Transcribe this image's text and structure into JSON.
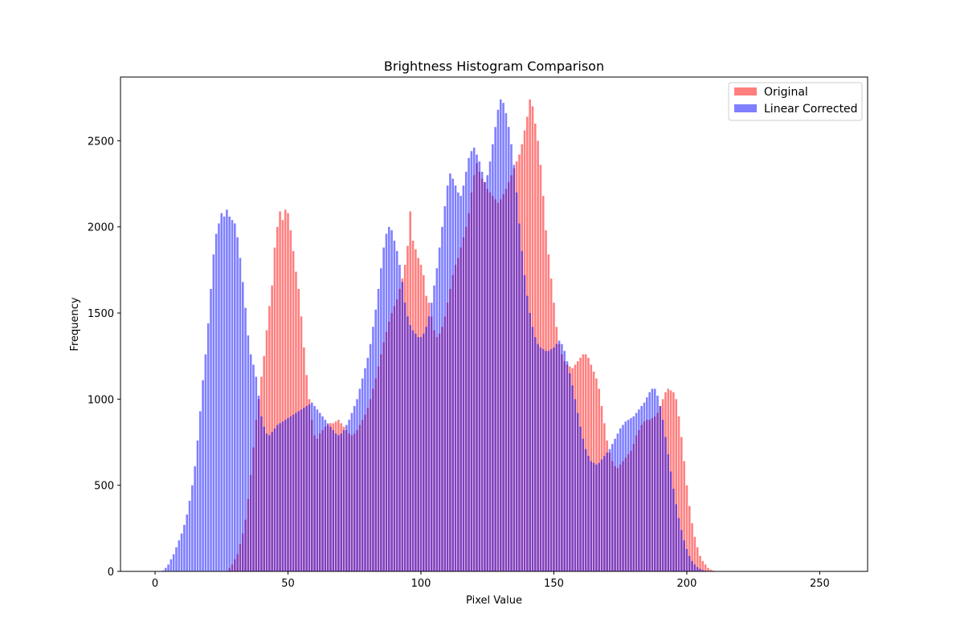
{
  "chart_data": {
    "type": "bar",
    "title": "Brightness Histogram Comparison",
    "xlabel": "Pixel Value",
    "ylabel": "Frequency",
    "xlim": [
      -13,
      268
    ],
    "ylim": [
      0,
      2870
    ],
    "xticks": [
      0,
      50,
      100,
      150,
      200,
      250
    ],
    "yticks": [
      0,
      500,
      1000,
      1500,
      2000,
      2500
    ],
    "grid": false,
    "legend_position": "top-right",
    "x_start": 0,
    "series": [
      {
        "name": "Original",
        "color": "#ff0000",
        "opacity": 0.5,
        "values": [
          0,
          0,
          0,
          0,
          0,
          0,
          0,
          0,
          0,
          0,
          0,
          0,
          0,
          0,
          0,
          0,
          0,
          0,
          0,
          0,
          0,
          0,
          0,
          0,
          0,
          0,
          0,
          0,
          20,
          40,
          70,
          100,
          160,
          220,
          300,
          420,
          560,
          720,
          880,
          1000,
          1130,
          1250,
          1400,
          1540,
          1660,
          1880,
          2000,
          2090,
          2040,
          2100,
          2080,
          1980,
          1860,
          1740,
          1640,
          1480,
          1300,
          1140,
          1000,
          880,
          790,
          770,
          800,
          820,
          840,
          850,
          860,
          860,
          870,
          880,
          860,
          840,
          820,
          800,
          790,
          800,
          820,
          850,
          880,
          910,
          950,
          1000,
          1060,
          1120,
          1190,
          1260,
          1330,
          1390,
          1450,
          1500,
          1540,
          1580,
          1640,
          1700,
          1780,
          1890,
          2090,
          1920,
          1870,
          1820,
          1780,
          1720,
          1600,
          1560,
          1480,
          1400,
          1360,
          1380,
          1420,
          1480,
          1560,
          1640,
          1720,
          1780,
          1820,
          1880,
          1940,
          2000,
          2080,
          2200,
          2300,
          2370,
          2320,
          2280,
          2260,
          2220,
          2200,
          2180,
          2160,
          2140,
          2160,
          2190,
          2220,
          2260,
          2300,
          2340,
          2380,
          2420,
          2480,
          2560,
          2640,
          2740,
          2700,
          2600,
          2500,
          2360,
          2180,
          1980,
          1840,
          1700,
          1560,
          1420,
          1320,
          1260,
          1220,
          1200,
          1190,
          1180,
          1200,
          1220,
          1240,
          1260,
          1260,
          1240,
          1200,
          1160,
          1120,
          1060,
          960,
          860,
          760,
          690,
          640,
          610,
          600,
          620,
          640,
          660,
          680,
          700,
          740,
          790,
          820,
          850,
          870,
          880,
          880,
          890,
          900,
          920,
          960,
          1000,
          1040,
          1060,
          1050,
          1040,
          1000,
          900,
          780,
          640,
          500,
          380,
          280,
          200,
          140,
          90,
          60,
          40,
          20,
          10,
          5,
          0,
          0,
          0,
          0,
          0,
          0,
          0,
          0,
          0,
          0,
          0,
          0,
          0,
          0,
          0,
          0,
          0,
          0,
          0,
          0,
          0,
          0,
          0,
          0,
          0,
          0,
          0,
          0,
          0,
          0,
          0,
          0,
          0,
          0,
          0,
          0,
          0,
          0,
          0,
          0,
          0,
          0,
          0,
          0,
          0
        ]
      },
      {
        "name": "Linear Corrected",
        "color": "#0000ff",
        "opacity": 0.5,
        "values": [
          0,
          0,
          0,
          5,
          20,
          40,
          70,
          100,
          140,
          180,
          220,
          270,
          330,
          410,
          500,
          610,
          760,
          930,
          1110,
          1260,
          1440,
          1640,
          1840,
          1960,
          2020,
          2080,
          2060,
          2100,
          2060,
          2040,
          2020,
          1940,
          1820,
          1680,
          1530,
          1370,
          1260,
          1200,
          1130,
          1020,
          900,
          840,
          800,
          790,
          810,
          830,
          850,
          860,
          870,
          880,
          890,
          900,
          910,
          920,
          930,
          940,
          950,
          960,
          970,
          980,
          960,
          940,
          920,
          900,
          880,
          860,
          840,
          820,
          800,
          790,
          800,
          820,
          850,
          880,
          920,
          960,
          1000,
          1060,
          1120,
          1180,
          1240,
          1320,
          1420,
          1520,
          1640,
          1760,
          1880,
          1960,
          2000,
          1980,
          1920,
          1860,
          1780,
          1680,
          1560,
          1480,
          1430,
          1400,
          1380,
          1360,
          1360,
          1380,
          1420,
          1480,
          1560,
          1660,
          1760,
          1880,
          2000,
          2120,
          2240,
          2310,
          2280,
          2240,
          2200,
          2180,
          2240,
          2320,
          2400,
          2440,
          2460,
          2420,
          2380,
          2320,
          2260,
          2300,
          2380,
          2480,
          2580,
          2680,
          2740,
          2720,
          2660,
          2580,
          2480,
          2360,
          2200,
          2020,
          1860,
          1720,
          1600,
          1500,
          1420,
          1360,
          1320,
          1300,
          1290,
          1280,
          1280,
          1290,
          1300,
          1320,
          1340,
          1320,
          1280,
          1220,
          1150,
          1080,
          1000,
          920,
          840,
          770,
          710,
          670,
          640,
          630,
          620,
          630,
          650,
          670,
          690,
          710,
          740,
          770,
          800,
          830,
          850,
          870,
          880,
          890,
          900,
          920,
          940,
          960,
          980,
          1010,
          1040,
          1060,
          1060,
          1020,
          960,
          880,
          780,
          680,
          580,
          480,
          390,
          310,
          240,
          180,
          130,
          90,
          60,
          40,
          25,
          15,
          8,
          4,
          2,
          0,
          0,
          0,
          0,
          0,
          0,
          0,
          0,
          0,
          0,
          0,
          0,
          0,
          0,
          0,
          0,
          0,
          0,
          0,
          0,
          0,
          0,
          0,
          0,
          0,
          0,
          0,
          0,
          0,
          0,
          0,
          0,
          0,
          0,
          0,
          0,
          0,
          0,
          0,
          0
        ]
      }
    ]
  }
}
